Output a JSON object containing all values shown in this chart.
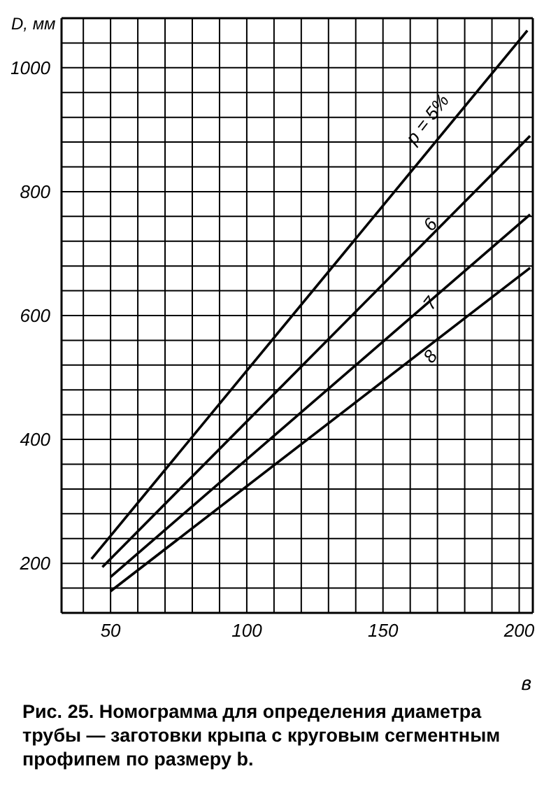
{
  "chart_data": {
    "type": "line",
    "ylabel": "D, мм",
    "xlabel": "в",
    "annotations": [
      "Рис. 25. Номограмма для определения диаметра трубы — заготовки крыпа с круговым сегментным профипем по размеру b."
    ],
    "series": [
      {
        "name": "p = 5%",
        "color": "#000000",
        "x": [
          43,
          203
        ],
        "values": [
          207,
          1060
        ]
      },
      {
        "name": "6",
        "color": "#000000",
        "x": [
          47,
          204
        ],
        "values": [
          194,
          890
        ]
      },
      {
        "name": "7",
        "color": "#000000",
        "x": [
          50,
          204
        ],
        "values": [
          178,
          763
        ]
      },
      {
        "name": "8",
        "color": "#000000",
        "x": [
          50,
          204
        ],
        "values": [
          155,
          677
        ]
      }
    ],
    "xlim": [
      32,
      205
    ],
    "xticks": [
      {
        "value": 40,
        "label": null
      },
      50,
      {
        "value": 60,
        "label": null
      },
      {
        "value": 70,
        "label": null
      },
      {
        "value": 80,
        "label": null
      },
      {
        "value": 90,
        "label": null
      },
      100,
      {
        "value": 110,
        "label": null
      },
      {
        "value": 120,
        "label": null
      },
      {
        "value": 130,
        "label": null
      },
      {
        "value": 140,
        "label": null
      },
      150,
      {
        "value": 160,
        "label": null
      },
      {
        "value": 170,
        "label": null
      },
      {
        "value": 180,
        "label": null
      },
      {
        "value": 190,
        "label": null
      },
      200
    ],
    "ylim": [
      120,
      1080
    ],
    "yticks": [
      {
        "value": 160,
        "label": null
      },
      200,
      {
        "value": 240,
        "label": null
      },
      {
        "value": 280,
        "label": null
      },
      {
        "value": 320,
        "label": null
      },
      {
        "value": 360,
        "label": null
      },
      400,
      {
        "value": 440,
        "label": null
      },
      {
        "value": 480,
        "label": null
      },
      {
        "value": 520,
        "label": null
      },
      {
        "value": 560,
        "label": null
      },
      600,
      {
        "value": 640,
        "label": null
      },
      {
        "value": 680,
        "label": null
      },
      {
        "value": 720,
        "label": null
      },
      {
        "value": 760,
        "label": null
      },
      800,
      {
        "value": 840,
        "label": null
      },
      {
        "value": 880,
        "label": null
      },
      {
        "value": 920,
        "label": null
      },
      {
        "value": 960,
        "label": null
      },
      1000,
      {
        "value": 1040,
        "label": null
      },
      {
        "value": 1080,
        "label": null
      }
    ],
    "grid": true,
    "legend": false,
    "marker": "none",
    "line_style": "solid"
  }
}
